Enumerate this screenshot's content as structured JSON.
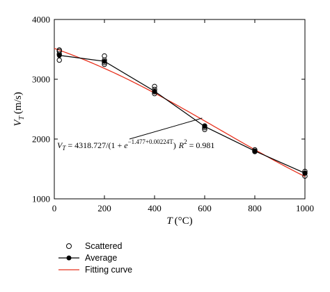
{
  "chart_data": {
    "type": "line",
    "x_axis": {
      "label_var": "T",
      "label_unit": "(°C)",
      "range": [
        0,
        1000
      ],
      "ticks": [
        0,
        200,
        400,
        600,
        800,
        1000
      ]
    },
    "y_axis": {
      "label_var": "V",
      "label_sub": "T",
      "label_unit": "(m/s)",
      "range": [
        1000,
        4000
      ],
      "ticks": [
        1000,
        2000,
        3000,
        4000
      ]
    },
    "grid": false,
    "legend_position": "bottom-left",
    "series": [
      {
        "name": "Scattered",
        "kind": "scatter",
        "points": [
          [
            20,
            3490
          ],
          [
            20,
            3470
          ],
          [
            20,
            3420
          ],
          [
            20,
            3320
          ],
          [
            200,
            3390
          ],
          [
            200,
            3320
          ],
          [
            200,
            3280
          ],
          [
            200,
            3250
          ],
          [
            400,
            2880
          ],
          [
            400,
            2830
          ],
          [
            400,
            2790
          ],
          [
            400,
            2760
          ],
          [
            600,
            2220
          ],
          [
            600,
            2190
          ],
          [
            600,
            2160
          ],
          [
            800,
            1820
          ],
          [
            800,
            1800
          ],
          [
            800,
            1790
          ],
          [
            1000,
            1460
          ],
          [
            1000,
            1430
          ],
          [
            1000,
            1380
          ]
        ],
        "color": "#000000"
      },
      {
        "name": "Average",
        "kind": "line-marker",
        "x": [
          20,
          200,
          400,
          600,
          800,
          1000
        ],
        "y": [
          3400,
          3300,
          2800,
          2210,
          1800,
          1430
        ],
        "color": "#000000"
      },
      {
        "name": "Fitting curve",
        "kind": "curve",
        "equation": {
          "A": 4318.727,
          "b0": -1.477,
          "b1": 0.00224
        },
        "x_range": [
          0,
          1000
        ],
        "color": "#e8321e"
      }
    ],
    "annotation": {
      "lhs_var": "V",
      "lhs_sub": "T",
      "eq_main": " = 4318.727/(1 + ",
      "eq_e": "e",
      "eq_exp": "−1.477+0.00224T",
      "eq_close": ")",
      "r2_text": "R",
      "r2_sup": "2",
      "r2_value": " = 0.981",
      "arrow_target": [
        590,
        2350
      ]
    }
  }
}
